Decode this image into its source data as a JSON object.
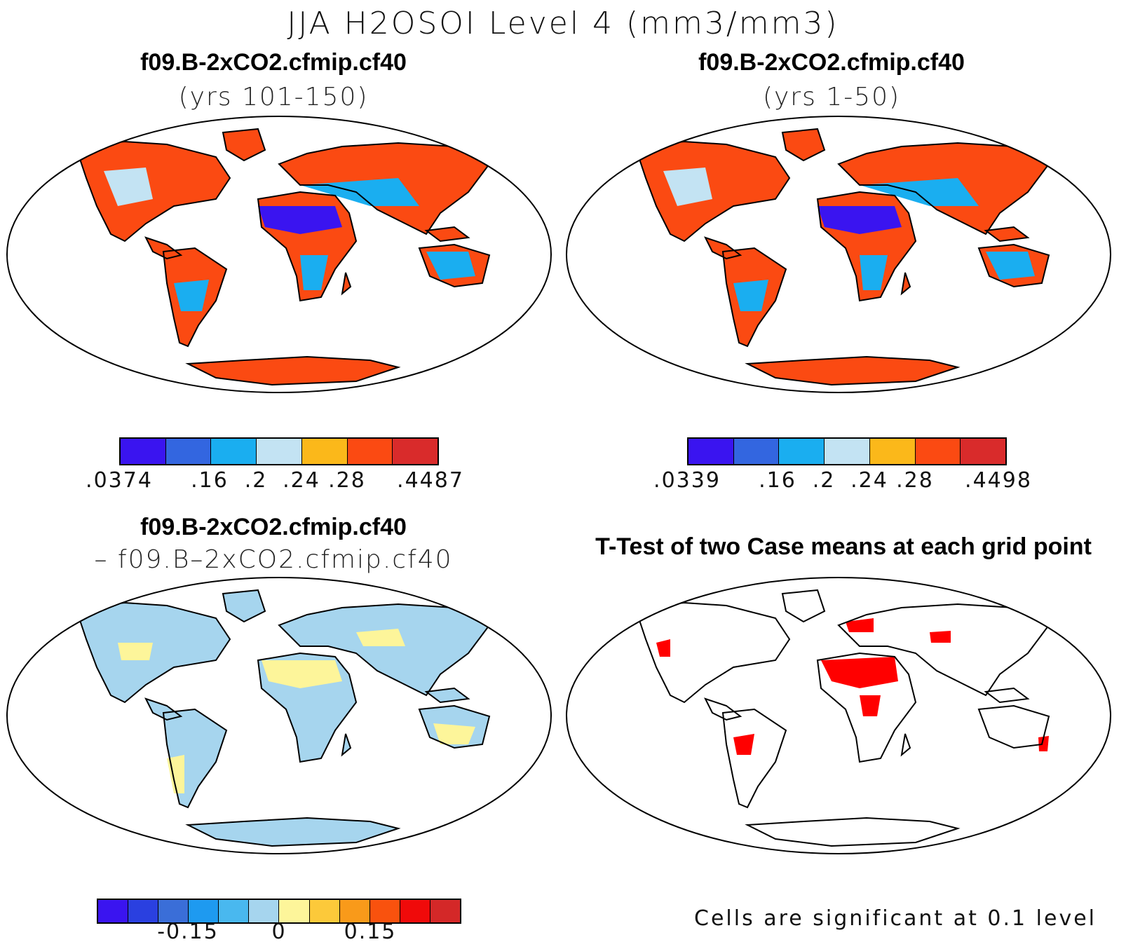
{
  "figure_title": "JJA H2OSOI Level 4 (mm3/mm3)",
  "panels": {
    "top_left": {
      "title": "f09.B-2xCO2.cfmip.cf40",
      "subtitle": "(yrs 101-150)"
    },
    "top_right": {
      "title": "f09.B-2xCO2.cfmip.cf40",
      "subtitle": "(yrs 1-50)"
    },
    "bottom_left": {
      "title": "f09.B-2xCO2.cfmip.cf40",
      "subtitle": "– f09.B–2xCO2.cfmip.cf40"
    },
    "bottom_right": {
      "title": "T-Test of two Case means at each grid point",
      "footnote": "Cells are significant at 0.1 level"
    }
  },
  "colorbars": {
    "top_left": {
      "colors": [
        "#3a14f0",
        "#3366e0",
        "#1aaef0",
        "#c3e3f3",
        "#fbb81a",
        "#fb4a12",
        "#d92b2b"
      ],
      "labels": [
        ".0374",
        ".16",
        ".2",
        ".24",
        ".28",
        ".4487"
      ]
    },
    "top_right": {
      "colors": [
        "#3a14f0",
        "#3366e0",
        "#1aaef0",
        "#c3e3f3",
        "#fbb81a",
        "#fb4a12",
        "#d92b2b"
      ],
      "labels": [
        ".0339",
        ".16",
        ".2",
        ".24",
        ".28",
        ".4498"
      ]
    },
    "bottom_left": {
      "colors": [
        "#3a14f0",
        "#2a40e0",
        "#3a6ed8",
        "#1e9af0",
        "#49b8ef",
        "#a6d5ee",
        "#fdf59a",
        "#fcc93a",
        "#f99a1a",
        "#f9520e",
        "#f00a0a",
        "#d42828"
      ],
      "labels": [
        "-0.15",
        "0",
        "0.15"
      ]
    }
  },
  "map_colors": {
    "land_dry": "#3a14f0",
    "land_mid": "#1aaef0",
    "land_wet": "#fb4a12",
    "land_pale": "#c3e3f3",
    "diff_neg": "#a6d5ee",
    "diff_pos": "#fdf59a",
    "sig": "#ff0000"
  }
}
